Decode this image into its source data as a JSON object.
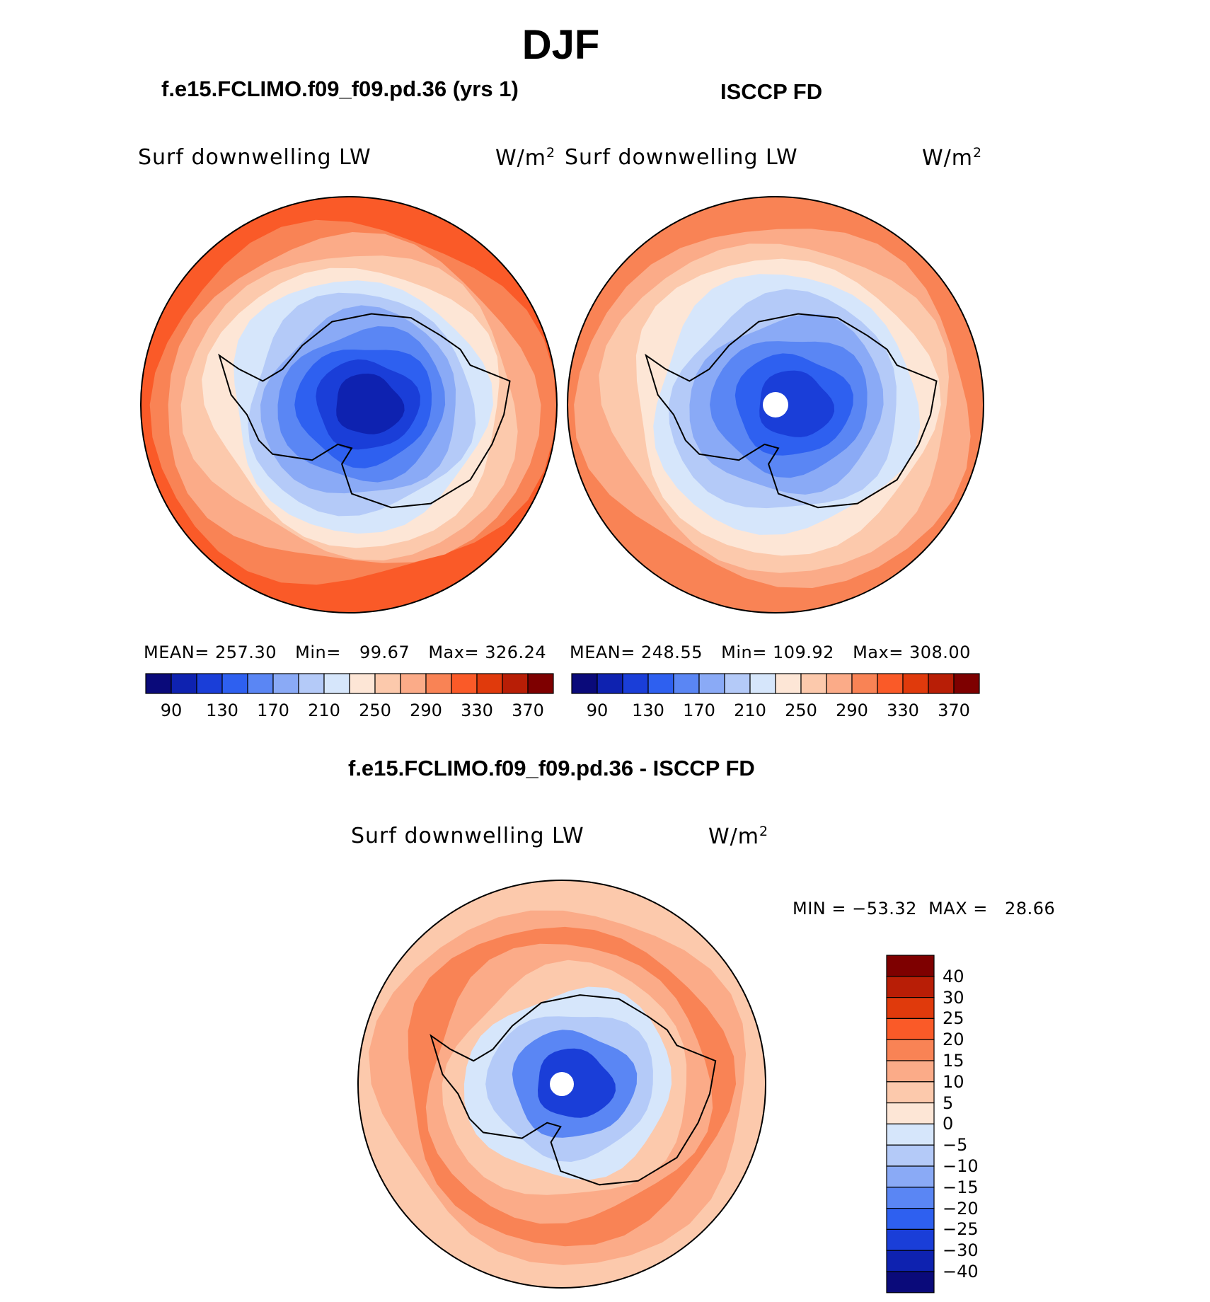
{
  "figure": {
    "season": "DJF",
    "model_title": "f.e15.FCLIMO.f09_f09.pd.36 (yrs 1)",
    "obs_title": "ISCCP FD",
    "diff_title": "f.e15.FCLIMO.f09_f09.pd.36 - ISCCP FD"
  },
  "chart_data": [
    {
      "type": "heatmap",
      "projection": "south-polar-stereographic",
      "panel": "model",
      "variable_label": "Surf downwelling LW",
      "units_label": "W/m",
      "units_exponent": "2",
      "stats": {
        "mean_label": "MEAN=",
        "mean": "257.30",
        "min_label": "Min=",
        "min": "99.67",
        "max_label": "Max=",
        "max": "326.24"
      },
      "colorbar": {
        "orientation": "horizontal",
        "levels": [
          "90",
          "130",
          "170",
          "210",
          "250",
          "290",
          "330",
          "370"
        ],
        "colors": [
          "#0a0a7a",
          "#0e22b0",
          "#1a3ed8",
          "#2e60f0",
          "#5a86f4",
          "#8aaaf6",
          "#b4caf8",
          "#d6e6fb",
          "#fde6d6",
          "#fcc9ac",
          "#fbab88",
          "#f98355",
          "#fa5a28",
          "#e03a0c",
          "#b81e06",
          "#7e0000"
        ]
      },
      "bands_center_to_edge": [
        "#0e22b0",
        "#1a3ed8",
        "#2e60f0",
        "#5a86f4",
        "#8aaaf6",
        "#b4caf8",
        "#d6e6fb",
        "#fde6d6",
        "#fcc9ac",
        "#fbab88",
        "#f98355",
        "#fa5a28"
      ]
    },
    {
      "type": "heatmap",
      "projection": "south-polar-stereographic",
      "panel": "observations",
      "variable_label": "Surf downwelling LW",
      "units_label": "W/m",
      "units_exponent": "2",
      "stats": {
        "mean_label": "MEAN=",
        "mean": "248.55",
        "min_label": "Min=",
        "min": "109.92",
        "max_label": "Max=",
        "max": "308.00"
      },
      "colorbar": {
        "orientation": "horizontal",
        "levels": [
          "90",
          "130",
          "170",
          "210",
          "250",
          "290",
          "330",
          "370"
        ],
        "colors": [
          "#0a0a7a",
          "#0e22b0",
          "#1a3ed8",
          "#2e60f0",
          "#5a86f4",
          "#8aaaf6",
          "#b4caf8",
          "#d6e6fb",
          "#fde6d6",
          "#fcc9ac",
          "#fbab88",
          "#f98355",
          "#fa5a28",
          "#e03a0c",
          "#b81e06",
          "#7e0000"
        ]
      },
      "bands_center_to_edge": [
        "#1a3ed8",
        "#2e60f0",
        "#5a86f4",
        "#8aaaf6",
        "#b4caf8",
        "#d6e6fb",
        "#fde6d6",
        "#fcc9ac",
        "#fbab88",
        "#f98355"
      ]
    },
    {
      "type": "heatmap",
      "projection": "south-polar-stereographic",
      "panel": "difference",
      "variable_label": "Surf downwelling LW",
      "units_label": "W/m",
      "units_exponent": "2",
      "stats": {
        "min_label": "MIN =",
        "min": "−53.32",
        "max_label": "MAX =",
        "max": "28.66"
      },
      "colorbar": {
        "orientation": "vertical",
        "levels": [
          "40",
          "30",
          "25",
          "20",
          "15",
          "10",
          "5",
          "0",
          "−5",
          "−10",
          "−15",
          "−20",
          "−25",
          "−30",
          "−40"
        ],
        "colors": [
          "#7e0000",
          "#b81e06",
          "#e03a0c",
          "#fa5a28",
          "#f98355",
          "#fbab88",
          "#fcc9ac",
          "#fde6d6",
          "#d6e6fb",
          "#b4caf8",
          "#8aaaf6",
          "#5a86f4",
          "#2e60f0",
          "#1a3ed8",
          "#0e22b0",
          "#0a0a7a"
        ]
      },
      "bands_center_to_edge": [
        "#1a3ed8",
        "#5a86f4",
        "#b4caf8",
        "#d6e6fb",
        "#fcc9ac",
        "#fbab88",
        "#f98355",
        "#fbab88",
        "#fcc9ac"
      ]
    }
  ]
}
